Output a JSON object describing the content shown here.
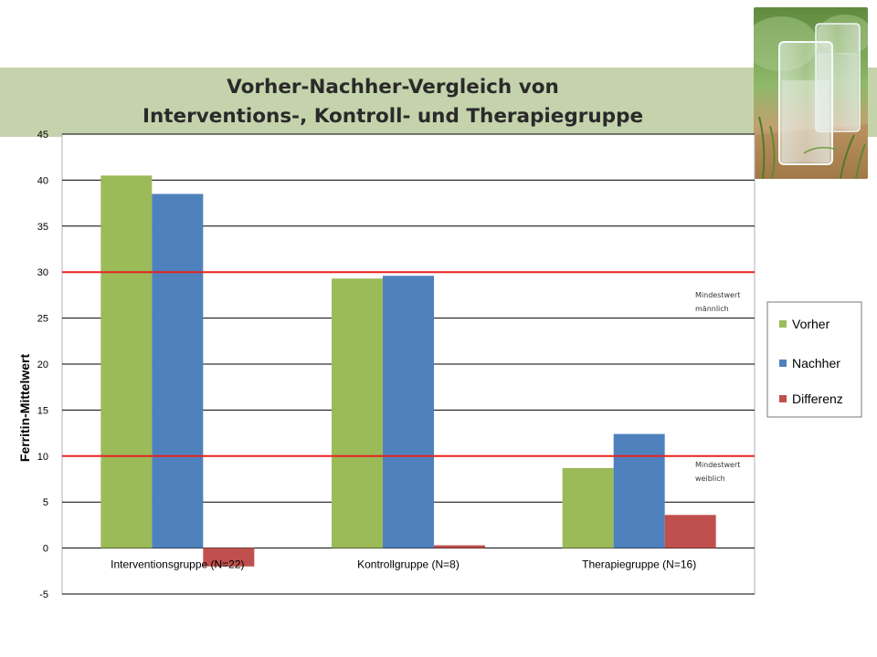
{
  "header": {
    "title_line1": "Vorher-Nachher-Vergleich von",
    "title_line2": "Interventions-, Kontroll- und Therapiegruppe"
  },
  "photo": {
    "icon": "glasses-on-grass-photo"
  },
  "colors": {
    "vorher": "#9bbb59",
    "nachher": "#4f81bd",
    "differenz": "#c0504d",
    "reference_line": "#e8221e",
    "banner": "#c5d3ad"
  },
  "chart_data": {
    "type": "bar",
    "title": "Vorher-Nachher-Vergleich von Interventions-, Kontroll- und Therapiegruppe",
    "ylabel": "Ferritin-Mittelwert",
    "xlabel": "",
    "ylim": [
      -5,
      45
    ],
    "yticks": [
      -5,
      0,
      5,
      10,
      15,
      20,
      25,
      30,
      35,
      40,
      45
    ],
    "grid": true,
    "legend_position": "right",
    "categories": [
      "Interventionsgruppe (N=22)",
      "Kontrollgruppe (N=8)",
      "Therapiegruppe (N=16)"
    ],
    "series": [
      {
        "name": "Vorher",
        "values": [
          40.5,
          29.3,
          8.7
        ]
      },
      {
        "name": "Nachher",
        "values": [
          38.5,
          29.6,
          12.4
        ]
      },
      {
        "name": "Differenz",
        "values": [
          -2.0,
          0.3,
          3.6
        ]
      }
    ],
    "reference_lines": [
      {
        "value": 30,
        "label_line1": "Mindestwert",
        "label_line2": "männlich"
      },
      {
        "value": 10,
        "label_line1": "Mindestwert",
        "label_line2": "weiblich"
      }
    ]
  }
}
